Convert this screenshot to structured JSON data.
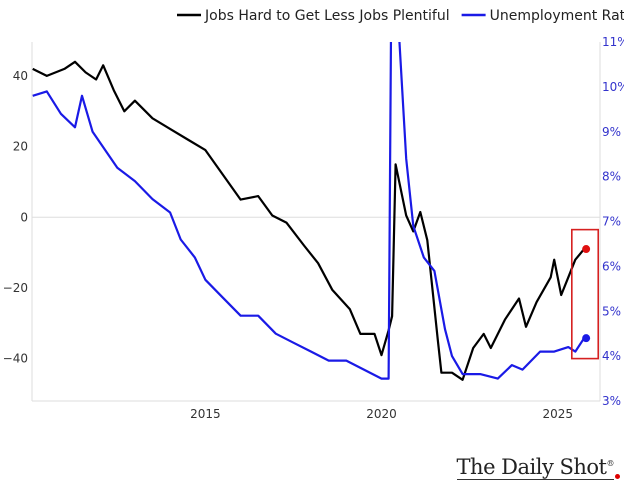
{
  "chart_data": {
    "type": "line",
    "title": "",
    "legend": {
      "placement": "top-center"
    },
    "x_ticks": [
      2015,
      2020,
      2025
    ],
    "xlim": [
      2010.08,
      2026.2
    ],
    "left_axis": {
      "ticks": [
        40,
        20,
        0,
        -20,
        -40
      ],
      "tick_labels": [
        "40",
        "20",
        "0",
        "−20",
        "−40"
      ],
      "range": [
        -52,
        49.6
      ]
    },
    "right_axis": {
      "ticks": [
        3,
        4,
        5,
        6,
        7,
        8,
        9,
        10,
        11
      ],
      "tick_labels": [
        "3%",
        "4%",
        "5%",
        "6%",
        "7%",
        "8%",
        "9%",
        "10%",
        "11%"
      ],
      "range": [
        3,
        11
      ]
    },
    "series": [
      {
        "name": "Jobs Hard to Get Less Jobs Plentiful",
        "axis": "left",
        "color": "#000000",
        "x": [
          2010.1,
          2010.5,
          2011.0,
          2011.3,
          2011.6,
          2011.9,
          2012.1,
          2012.4,
          2012.7,
          2013.0,
          2013.5,
          2014.0,
          2014.5,
          2015.0,
          2015.5,
          2016.0,
          2016.5,
          2016.9,
          2017.3,
          2017.8,
          2018.2,
          2018.6,
          2019.1,
          2019.4,
          2019.8,
          2020.0,
          2020.2,
          2020.3,
          2020.4,
          2020.7,
          2020.9,
          2021.1,
          2021.3,
          2021.6,
          2021.7,
          2022.0,
          2022.3,
          2022.6,
          2022.9,
          2023.1,
          2023.5,
          2023.9,
          2024.1,
          2024.4,
          2024.8,
          2024.9,
          2025.1,
          2025.3,
          2025.5,
          2025.75
        ],
        "values": [
          42,
          40,
          42,
          44,
          41,
          39,
          43,
          36,
          30,
          33,
          28,
          25,
          22,
          19,
          12,
          5,
          6,
          0.5,
          -1.5,
          -8,
          -13,
          -20.5,
          -26,
          -33,
          -33,
          -39,
          -32,
          -28,
          15,
          0.5,
          -4,
          1.5,
          -6.5,
          -35,
          -44,
          -44,
          -46,
          -37,
          -33,
          -37,
          -29,
          -23,
          -31,
          -24,
          -17,
          -12,
          -22,
          -17,
          -12,
          -9
        ]
      },
      {
        "name": "Unemployment Rate",
        "axis": "right",
        "color": "#1a1ae6",
        "x": [
          2010.1,
          2010.5,
          2010.9,
          2011.3,
          2011.5,
          2011.8,
          2012.5,
          2013.0,
          2013.5,
          2014.0,
          2014.3,
          2014.7,
          2015.0,
          2015.5,
          2016.0,
          2016.5,
          2017.0,
          2017.5,
          2018.0,
          2018.5,
          2019.0,
          2019.5,
          2020.0,
          2020.2,
          2020.3,
          2020.5,
          2020.7,
          2020.9,
          2021.2,
          2021.5,
          2021.8,
          2022.0,
          2022.3,
          2022.8,
          2023.3,
          2023.7,
          2024.0,
          2024.5,
          2024.9,
          2025.3,
          2025.5,
          2025.75
        ],
        "values": [
          9.8,
          9.9,
          9.4,
          9.1,
          9.8,
          9.0,
          8.2,
          7.9,
          7.5,
          7.2,
          6.6,
          6.2,
          5.7,
          5.3,
          4.9,
          4.9,
          4.5,
          4.3,
          4.1,
          3.9,
          3.9,
          3.7,
          3.5,
          3.5,
          14.7,
          11.1,
          8.4,
          6.9,
          6.2,
          5.9,
          4.6,
          4.0,
          3.6,
          3.6,
          3.5,
          3.8,
          3.7,
          4.1,
          4.1,
          4.2,
          4.1,
          4.4
        ]
      }
    ],
    "highlight_box": {
      "x": [
        2025.4,
        2026.15
      ],
      "left_y": [
        -40,
        -3.5
      ],
      "color": "#d62020"
    },
    "end_markers": [
      {
        "series": 0,
        "color": "#e01010"
      },
      {
        "series": 1,
        "color": "#1a1ae6"
      }
    ]
  },
  "logo": {
    "text": "The Daily Shot",
    "mark": "®"
  }
}
